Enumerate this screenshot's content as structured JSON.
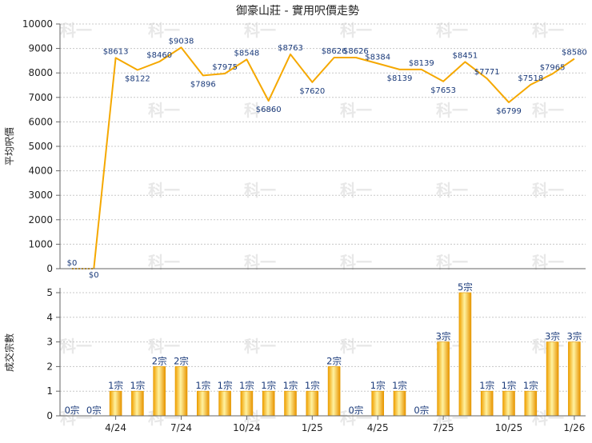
{
  "chart_data": [
    {
      "type": "line",
      "title": "御豪山莊 - 實用呎價走勢",
      "ylabel": "平均呎價",
      "ylim": [
        0,
        10000
      ],
      "yticks": [
        "0",
        "1000",
        "2000",
        "3000",
        "4000",
        "5000",
        "6000",
        "7000",
        "8000",
        "9000",
        "10000"
      ],
      "grid": true,
      "color": "#f5a800",
      "values": [
        0,
        0,
        8613,
        8122,
        8460,
        9038,
        7896,
        7975,
        8548,
        6860,
        8763,
        7620,
        8626,
        8626,
        8384,
        8139,
        8139,
        7653,
        8451,
        7771,
        6799,
        7518,
        7965,
        8580
      ],
      "labels": [
        "$0",
        "$0",
        "$8613",
        "$8122",
        "$8460",
        "$9038",
        "$7896",
        "$7975",
        "$8548",
        "$6860",
        "$8763",
        "$7620",
        "$8626",
        "$8626",
        "$8384",
        "$8139",
        "$8139",
        "$7653",
        "$8451",
        "$7771",
        "$6799",
        "$7518",
        "$7965",
        "$8580"
      ]
    },
    {
      "type": "bar",
      "ylabel": "成交宗數",
      "ylim": [
        0,
        5
      ],
      "yticks": [
        "0",
        "1",
        "2",
        "3",
        "4",
        "5"
      ],
      "grid": true,
      "color": "#f5a800",
      "values": [
        0,
        0,
        1,
        1,
        2,
        2,
        1,
        1,
        1,
        1,
        1,
        1,
        2,
        0,
        1,
        1,
        0,
        3,
        5,
        1,
        1,
        1,
        3,
        3
      ],
      "labels": [
        "0宗",
        "0宗",
        "1宗",
        "1宗",
        "2宗",
        "2宗",
        "1宗",
        "1宗",
        "1宗",
        "1宗",
        "1宗",
        "1宗",
        "2宗",
        "0宗",
        "1宗",
        "1宗",
        "0宗",
        "3宗",
        "5宗",
        "1宗",
        "1宗",
        "1宗",
        "3宗",
        "3宗"
      ],
      "xticks": [
        {
          "index": 2,
          "label": "4/24"
        },
        {
          "index": 5,
          "label": "7/24"
        },
        {
          "index": 8,
          "label": "10/24"
        },
        {
          "index": 11,
          "label": "1/25"
        },
        {
          "index": 14,
          "label": "4/25"
        },
        {
          "index": 17,
          "label": "7/25"
        },
        {
          "index": 20,
          "label": "10/25"
        },
        {
          "index": 23,
          "label": "1/26"
        }
      ]
    }
  ],
  "watermark": "科一"
}
